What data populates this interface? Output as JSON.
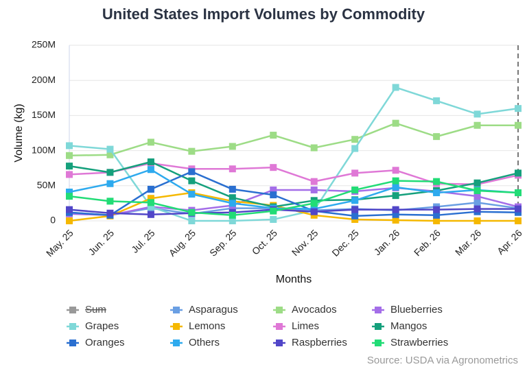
{
  "chart_data": {
    "type": "line",
    "title": "United States Import Volumes by Commodity",
    "x_label": "Months",
    "y_label": "Volume (kg)",
    "source": "Source: USDA via Agronometrics",
    "categories": [
      "May. 25",
      "Jun. 25",
      "Jul. 25",
      "Aug. 25",
      "Sep. 25",
      "Oct. 25",
      "Nov. 25",
      "Dec. 25",
      "Jan. 26",
      "Feb. 26",
      "Mar. 26",
      "Apr. 26"
    ],
    "ylim": [
      0,
      250000000
    ],
    "yticks": [
      0,
      {
        "value": 50000000,
        "label": "50M"
      },
      {
        "value": 100000000,
        "label": "100M"
      },
      {
        "value": 150000000,
        "label": "150M"
      },
      {
        "value": 200000000,
        "label": "200M"
      },
      {
        "value": 250000000,
        "label": "250M"
      }
    ],
    "grid": true,
    "series": [
      {
        "name": "Sum",
        "color": "#555555",
        "hidden": true,
        "values": [
          null,
          null,
          null,
          null,
          null,
          null,
          null,
          null,
          null,
          null,
          null,
          null
        ]
      },
      {
        "name": "Asparagus",
        "color": "#6a9fe3",
        "values": [
          12000000,
          8000000,
          18000000,
          10000000,
          18000000,
          18000000,
          15000000,
          17000000,
          15000000,
          20000000,
          26000000,
          18000000
        ]
      },
      {
        "name": "Avocados",
        "color": "#9ddc86",
        "values": [
          93000000,
          94000000,
          112000000,
          99000000,
          106000000,
          122000000,
          104000000,
          116000000,
          139000000,
          120000000,
          136000000,
          136000000
        ]
      },
      {
        "name": "Blueberries",
        "color": "#a46ee8",
        "values": [
          10000000,
          8000000,
          20000000,
          15000000,
          22000000,
          44000000,
          44000000,
          42000000,
          47000000,
          42000000,
          35000000,
          20000000
        ]
      },
      {
        "name": "Grapes",
        "color": "#7fd8d8",
        "values": [
          107000000,
          102000000,
          20000000,
          0,
          0,
          2000000,
          15000000,
          103000000,
          190000000,
          171000000,
          152000000,
          160000000
        ]
      },
      {
        "name": "Lemons",
        "color": "#f5b800",
        "values": [
          0,
          7000000,
          32000000,
          40000000,
          28000000,
          22000000,
          8000000,
          2000000,
          1000000,
          0,
          0,
          0
        ]
      },
      {
        "name": "Limes",
        "color": "#df78d6",
        "values": [
          66000000,
          69000000,
          82000000,
          74000000,
          74000000,
          76000000,
          56000000,
          68000000,
          72000000,
          53000000,
          52000000,
          65000000
        ]
      },
      {
        "name": "Mangos",
        "color": "#15a07c",
        "values": [
          78000000,
          69000000,
          84000000,
          57000000,
          33000000,
          20000000,
          29000000,
          30000000,
          36000000,
          43000000,
          54000000,
          68000000
        ]
      },
      {
        "name": "Oranges",
        "color": "#2a6fd0",
        "values": [
          12000000,
          8000000,
          45000000,
          70000000,
          45000000,
          37000000,
          14000000,
          7000000,
          9000000,
          8000000,
          13000000,
          12000000
        ]
      },
      {
        "name": "Others",
        "color": "#2eaaee",
        "values": [
          41000000,
          53000000,
          73000000,
          38000000,
          25000000,
          18000000,
          17000000,
          29000000,
          48000000,
          40000000,
          44000000,
          40000000
        ]
      },
      {
        "name": "Raspberries",
        "color": "#5146c8",
        "values": [
          16000000,
          11000000,
          9000000,
          11000000,
          12000000,
          16000000,
          13000000,
          16000000,
          16000000,
          16000000,
          17000000,
          17000000
        ]
      },
      {
        "name": "Strawberries",
        "color": "#22dc76",
        "values": [
          35000000,
          28000000,
          26000000,
          12000000,
          8000000,
          14000000,
          25000000,
          44000000,
          57000000,
          56000000,
          43000000,
          40000000
        ]
      }
    ]
  }
}
